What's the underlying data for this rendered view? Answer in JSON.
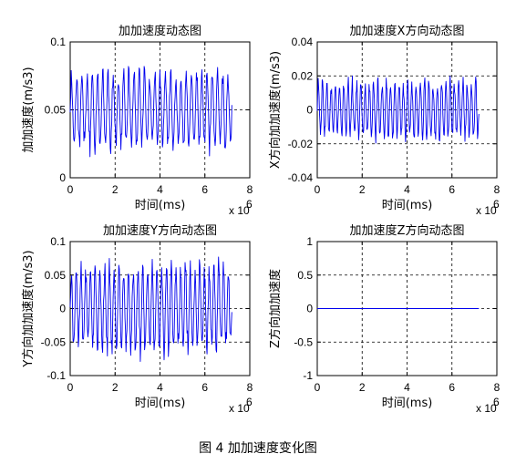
{
  "caption": "图 4  加加速度变化图",
  "chart_data": [
    {
      "type": "line",
      "title": "加加速度动态图",
      "xlabel": "时间(ms)",
      "ylabel": "加加速度(m/s3)",
      "x_exponent": "x 10",
      "x_exponent_power": "6",
      "xlim": [
        0,
        8000000
      ],
      "ylim": [
        0,
        0.1
      ],
      "xticks": [
        0,
        2,
        4,
        6,
        8
      ],
      "yticks": [
        0,
        0.05,
        0.1
      ],
      "grid": true,
      "color": "#0000ee",
      "signal": {
        "x_start": 0,
        "x_end": 7200000,
        "cycles": 31,
        "center": 0.05,
        "amplitude": 0.032,
        "points": 320,
        "seed": 11
      },
      "series": [
        {
          "name": "",
          "values": []
        }
      ]
    },
    {
      "type": "line",
      "title": "加加速度X方向动态图",
      "xlabel": "时间(ms)",
      "ylabel": "X方向加加速度(m/s3)",
      "x_exponent": "x 10",
      "x_exponent_power": "6",
      "xlim": [
        0,
        8000000
      ],
      "ylim": [
        -0.04,
        0.04
      ],
      "xticks": [
        0,
        2,
        4,
        6,
        8
      ],
      "yticks": [
        -0.04,
        -0.02,
        0,
        0.02,
        0.04
      ],
      "grid": true,
      "color": "#0000ee",
      "signal": {
        "x_start": 0,
        "x_end": 7200000,
        "cycles": 38,
        "center": 0.0,
        "amplitude": 0.02,
        "points": 360,
        "seed": 23,
        "clip": [
          -0.02,
          0.02
        ]
      },
      "series": [
        {
          "name": "",
          "values": []
        }
      ]
    },
    {
      "type": "line",
      "title": "加加速度Y方向动态图",
      "xlabel": "时间(ms)",
      "ylabel": "Y方向加加速度(m/s3)",
      "x_exponent": "x 10",
      "x_exponent_power": "6",
      "xlim": [
        0,
        8000000
      ],
      "ylim": [
        -0.1,
        0.1
      ],
      "xticks": [
        0,
        2,
        4,
        6,
        8
      ],
      "yticks": [
        -0.1,
        -0.05,
        0,
        0.05,
        0.1
      ],
      "grid": true,
      "color": "#0000ee",
      "signal": {
        "x_start": 0,
        "x_end": 7200000,
        "cycles": 34,
        "center": 0.0,
        "amplitude": 0.075,
        "points": 340,
        "seed": 37
      },
      "series": [
        {
          "name": "",
          "values": []
        }
      ]
    },
    {
      "type": "line",
      "title": "加加速度Z方向动态图",
      "xlabel": "时间(ms)",
      "ylabel": "Z方向加加速度",
      "x_exponent": "x 10",
      "x_exponent_power": "6",
      "xlim": [
        0,
        8000000
      ],
      "ylim": [
        -1,
        1
      ],
      "xticks": [
        0,
        2,
        4,
        6,
        8
      ],
      "yticks": [
        -1,
        -0.5,
        0,
        0.5,
        1
      ],
      "grid": true,
      "color": "#0000ee",
      "series": [
        {
          "name": "",
          "x": [
            0,
            7200000
          ],
          "values": [
            0,
            0
          ]
        }
      ]
    }
  ]
}
